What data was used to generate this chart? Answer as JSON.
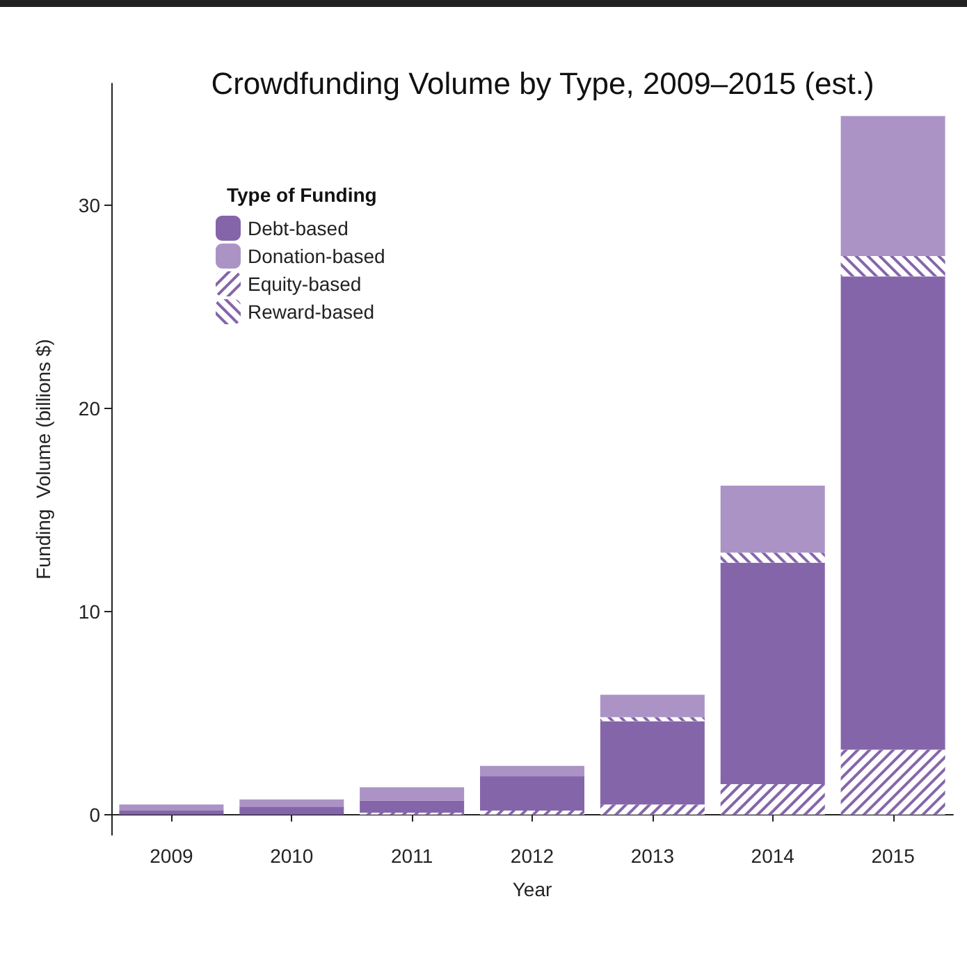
{
  "chart_data": {
    "type": "bar",
    "title": "Crowdfunding Volume by Type, 2009–2015 (est.)",
    "xlabel": "Year",
    "ylabel": "Funding  Volume (billions $)",
    "legend_title": "Type of Funding",
    "categories": [
      "2009",
      "2010",
      "2011",
      "2012",
      "2013",
      "2014",
      "2015"
    ],
    "stacked": true,
    "ylim": [
      -1,
      36
    ],
    "yticks": [
      0,
      10,
      20,
      30
    ],
    "grid": false,
    "legend": "top left",
    "series": [
      {
        "name": "Equity-based",
        "color": "#8565aa",
        "values": [
          null,
          null,
          0.1,
          0.2,
          0.5,
          1.5,
          3.2
        ]
      },
      {
        "name": "Debt-based",
        "color": "#8565aa",
        "values": [
          0.2,
          0.4,
          0.6,
          1.7,
          4.1,
          10.9,
          23.3
        ]
      },
      {
        "name": "Reward-based",
        "color": "#8565aa",
        "values": [
          null,
          null,
          null,
          null,
          0.2,
          0.5,
          1.0
        ]
      },
      {
        "name": "Donation-based",
        "color": "#ab94c5",
        "values": [
          0.3,
          0.35,
          0.65,
          0.5,
          1.1,
          3.3,
          6.9
        ]
      }
    ]
  }
}
